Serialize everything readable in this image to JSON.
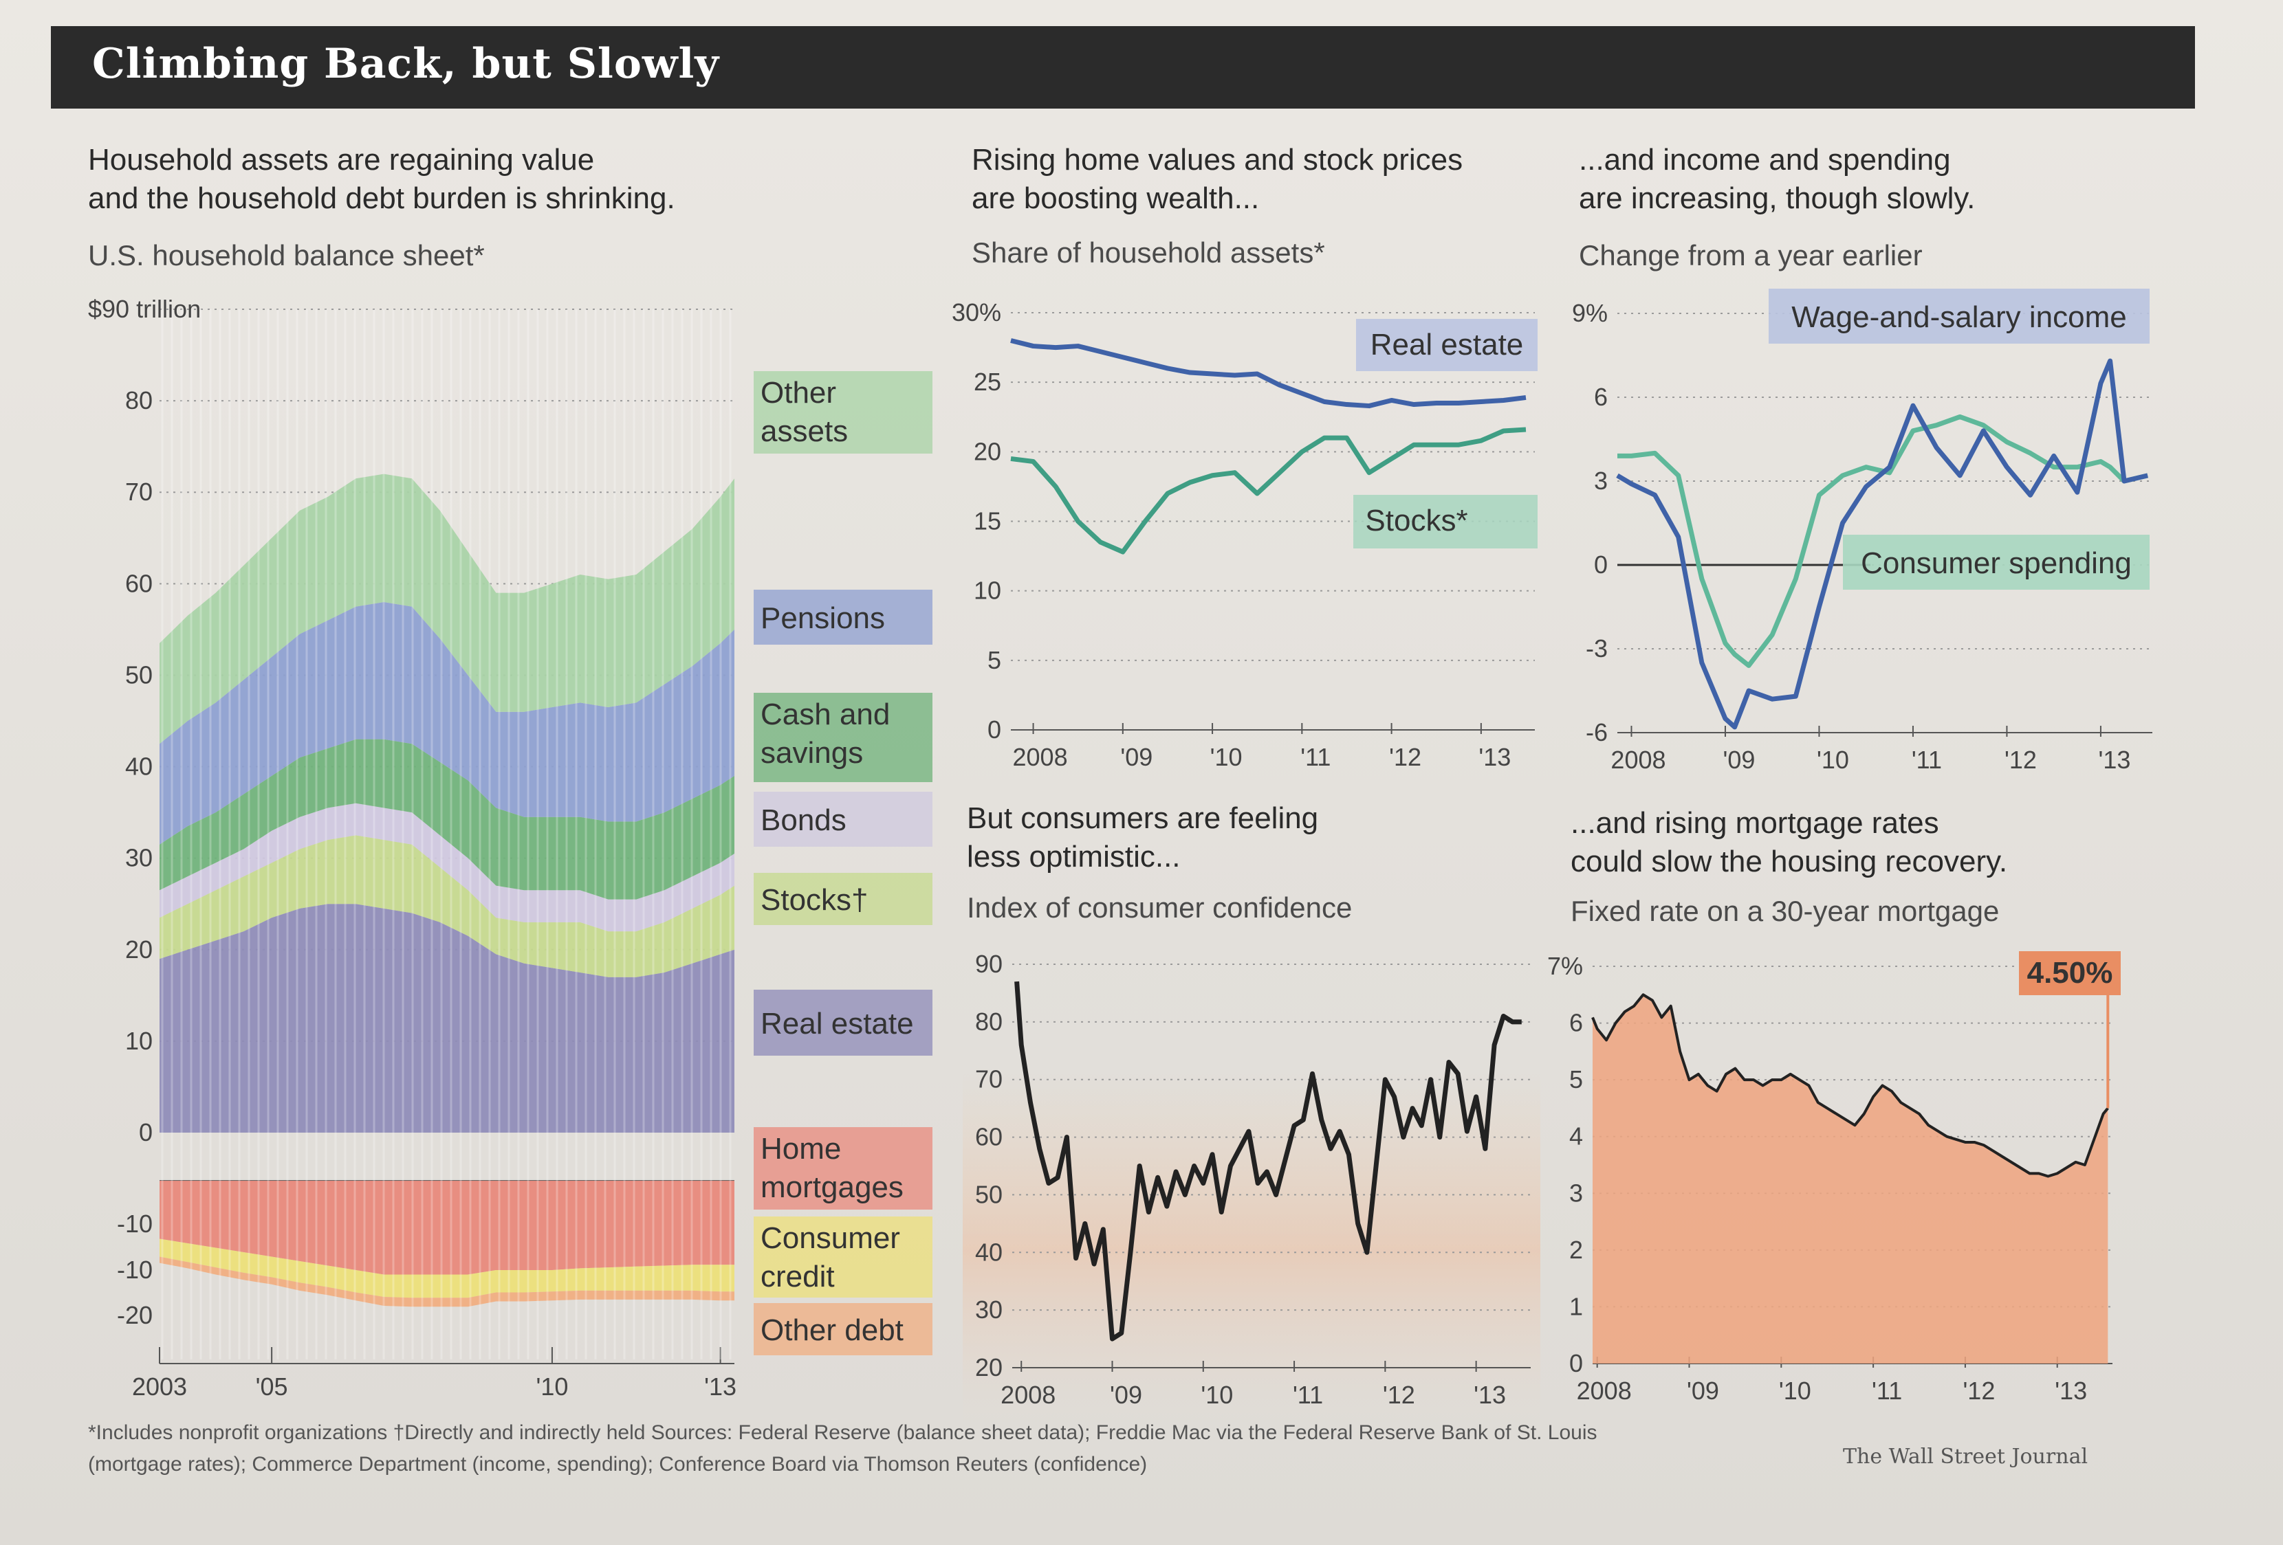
{
  "title": "Climbing Back, but Slowly",
  "panels": {
    "balance": {
      "headline_line1": "Household assets are regaining value",
      "headline_line2": "and the household debt burden is shrinking.",
      "subtitle": "U.S. household balance sheet*"
    },
    "share": {
      "headline_line1": "Rising home values and stock prices",
      "headline_line2": "are boosting wealth...",
      "subtitle": "Share of household assets*"
    },
    "income": {
      "headline_line1": "...and income and spending",
      "headline_line2": "are increasing, though slowly.",
      "subtitle": "Change from a year earlier"
    },
    "confidence": {
      "headline_line1": "But consumers are feeling",
      "headline_line2": "less optimistic...",
      "subtitle": "Index of consumer confidence"
    },
    "mortgage": {
      "headline_line1": "...and rising mortgage rates",
      "headline_line2": "could slow the housing recovery.",
      "subtitle": "Fixed rate on a 30-year mortgage"
    }
  },
  "footnote_line1": "*Includes nonprofit organizations    †Directly and indirectly held    Sources: Federal Reserve (balance sheet data); Freddie Mac via the Federal Reserve Bank of St. Louis",
  "footnote_line2": "(mortgage rates); Commerce Department (income, spending); Conference Board via Thomson Reuters (confidence)",
  "credit": "The Wall Street Journal",
  "chart_data": [
    {
      "type": "area",
      "title": "U.S. household balance sheet*",
      "y_unit_label": "$90 trillion",
      "ylim": [
        -20,
        90
      ],
      "y_ticks": [
        -20,
        -10,
        0,
        10,
        20,
        30,
        40,
        50,
        60,
        70,
        80,
        90
      ],
      "y_tick_labels": [
        "-20",
        "-10",
        "0",
        "10",
        "20",
        "30",
        "40",
        "50",
        "60",
        "70",
        "80",
        "$90 trillion"
      ],
      "x_tick_labels": [
        "2003",
        "'05",
        "'10",
        "'13"
      ],
      "x_tick_years": [
        2003,
        2005,
        2010,
        2013
      ],
      "x": [
        2003.0,
        2003.5,
        2004.0,
        2004.5,
        2005.0,
        2005.5,
        2006.0,
        2006.5,
        2007.0,
        2007.5,
        2008.0,
        2008.5,
        2009.0,
        2009.5,
        2010.0,
        2010.5,
        2011.0,
        2011.5,
        2012.0,
        2012.5,
        2013.0,
        2013.25
      ],
      "series": [
        {
          "name": "Real estate",
          "color": "#8e8bb8",
          "values": [
            19,
            20,
            21,
            22,
            23.5,
            24.5,
            25,
            25,
            24.5,
            24,
            23,
            21.5,
            19.5,
            18.5,
            18,
            17.5,
            17,
            17,
            17.5,
            18.5,
            19.5,
            20
          ]
        },
        {
          "name": "Stocks†",
          "color": "#c6d98e",
          "values": [
            4.5,
            5,
            5.5,
            6,
            6,
            6.5,
            7,
            7.5,
            7.5,
            7.5,
            6,
            5,
            4,
            4.5,
            5,
            5.5,
            5,
            5,
            5.5,
            6,
            6.5,
            7
          ]
        },
        {
          "name": "Bonds",
          "color": "#cfc8df",
          "values": [
            3,
            3,
            3,
            3,
            3.5,
            3.5,
            3.5,
            3.5,
            3.5,
            3.5,
            3.5,
            3.5,
            3.5,
            3.5,
            3.5,
            3.5,
            3.5,
            3.5,
            3.5,
            3.5,
            3.5,
            3.5
          ]
        },
        {
          "name": "Cash and savings",
          "color": "#6fb27a",
          "values": [
            5,
            5.5,
            5.5,
            6,
            6,
            6.5,
            6.5,
            7,
            7.5,
            7.5,
            8,
            8.5,
            8.5,
            8,
            8,
            8,
            8.5,
            8.5,
            8.5,
            8.5,
            8.5,
            8.5
          ]
        },
        {
          "name": "Pensions",
          "color": "#8d9fd0",
          "values": [
            11,
            11.5,
            12,
            12.5,
            13,
            13.5,
            14,
            14.5,
            15,
            15,
            13.5,
            11.5,
            10.5,
            11.5,
            12,
            12.5,
            12.5,
            13,
            14,
            14.5,
            15.5,
            16
          ]
        },
        {
          "name": "Other assets",
          "color": "#a8d3a6",
          "values": [
            11,
            11.5,
            12,
            12.5,
            13,
            13.5,
            13.5,
            14,
            14,
            14,
            14,
            13.5,
            13,
            13,
            13.5,
            14,
            14,
            14,
            14.5,
            15,
            16,
            16.5
          ]
        },
        {
          "name": "Home mortgages",
          "color": "#e8897c",
          "values": [
            -6.5,
            -7,
            -7.5,
            -8,
            -8.5,
            -9,
            -9.5,
            -10,
            -10.5,
            -10.5,
            -10.5,
            -10.5,
            -10,
            -10,
            -10,
            -9.8,
            -9.7,
            -9.6,
            -9.5,
            -9.4,
            -9.4,
            -9.4
          ]
        },
        {
          "name": "Consumer credit",
          "color": "#ecdf7a",
          "values": [
            -2,
            -2.1,
            -2.2,
            -2.3,
            -2.3,
            -2.4,
            -2.4,
            -2.5,
            -2.5,
            -2.6,
            -2.6,
            -2.6,
            -2.5,
            -2.5,
            -2.4,
            -2.5,
            -2.6,
            -2.7,
            -2.8,
            -2.9,
            -3,
            -3
          ]
        },
        {
          "name": "Other debt",
          "color": "#f0ae82",
          "values": [
            -0.7,
            -0.7,
            -0.8,
            -0.8,
            -0.8,
            -0.9,
            -0.9,
            -0.9,
            -1,
            -1,
            -1,
            -1,
            -1,
            -1,
            -1,
            -1,
            -1,
            -1,
            -1,
            -1,
            -1,
            -1
          ]
        }
      ],
      "legend_placement": "right"
    },
    {
      "type": "line",
      "title": "Share of household assets*",
      "ylim": [
        0,
        30
      ],
      "y_ticks": [
        0,
        5,
        10,
        15,
        20,
        25,
        30
      ],
      "y_tick_labels": [
        "0",
        "5",
        "10",
        "15",
        "20",
        "25",
        "30%"
      ],
      "x_tick_labels": [
        "2008",
        "'09",
        "'10",
        "'11",
        "'12",
        "'13"
      ],
      "x_tick_years": [
        2008,
        2009,
        2010,
        2011,
        2012,
        2013
      ],
      "x": [
        2007.75,
        2008.0,
        2008.25,
        2008.5,
        2008.75,
        2009.0,
        2009.25,
        2009.5,
        2009.75,
        2010.0,
        2010.25,
        2010.5,
        2010.75,
        2011.0,
        2011.25,
        2011.5,
        2011.75,
        2012.0,
        2012.25,
        2012.5,
        2012.75,
        2013.0,
        2013.25,
        2013.5
      ],
      "series": [
        {
          "name": "Real estate",
          "color": "#3f62a8",
          "values": [
            28,
            27.6,
            27.5,
            27.6,
            27.2,
            26.8,
            26.4,
            26,
            25.7,
            25.6,
            25.5,
            25.6,
            24.8,
            24.2,
            23.6,
            23.4,
            23.3,
            23.7,
            23.4,
            23.5,
            23.5,
            23.6,
            23.7,
            23.9
          ]
        },
        {
          "name": "Stocks*",
          "color": "#3f9e84",
          "values": [
            19.5,
            19.3,
            17.5,
            15,
            13.5,
            12.8,
            15,
            17,
            17.8,
            18.3,
            18.5,
            17,
            18.5,
            20,
            21,
            21,
            18.5,
            19.5,
            20.5,
            20.5,
            20.5,
            20.8,
            21.5,
            21.6
          ]
        }
      ]
    },
    {
      "type": "line",
      "title": "Change from a year earlier",
      "ylim": [
        -6,
        9
      ],
      "y_ticks": [
        -6,
        -3,
        0,
        3,
        6,
        9
      ],
      "y_tick_labels": [
        "-6",
        "-3",
        "0",
        "3",
        "6",
        "9%"
      ],
      "x_tick_labels": [
        "2008",
        "'09",
        "'10",
        "'11",
        "'12",
        "'13"
      ],
      "x_tick_years": [
        2008,
        2009,
        2010,
        2011,
        2012,
        2013
      ],
      "x": [
        2007.85,
        2008.0,
        2008.25,
        2008.5,
        2008.75,
        2009.0,
        2009.1,
        2009.25,
        2009.5,
        2009.75,
        2010.0,
        2010.25,
        2010.5,
        2010.75,
        2011.0,
        2011.25,
        2011.5,
        2011.75,
        2012.0,
        2012.25,
        2012.5,
        2012.75,
        2013.0,
        2013.1,
        2013.25,
        2013.5
      ],
      "series": [
        {
          "name": "Wage-and-salary income",
          "color": "#3f62a8",
          "values": [
            3.2,
            2.9,
            2.5,
            1,
            -3.5,
            -5.5,
            -5.8,
            -4.5,
            -4.8,
            -4.7,
            -1.5,
            1.5,
            2.8,
            3.5,
            5.7,
            4.2,
            3.2,
            4.8,
            3.5,
            2.5,
            3.9,
            2.6,
            6.5,
            7.3,
            3,
            3.2
          ]
        },
        {
          "name": "Consumer spending",
          "color": "#5fb89a",
          "values": [
            3.9,
            3.9,
            4,
            3.2,
            -0.5,
            -2.8,
            -3.2,
            -3.6,
            -2.5,
            -0.5,
            2.5,
            3.2,
            3.5,
            3.3,
            4.8,
            5,
            5.3,
            5,
            4.4,
            4,
            3.5,
            3.5,
            3.7,
            3.5,
            3,
            3.2
          ]
        }
      ]
    },
    {
      "type": "line",
      "title": "Index of consumer confidence",
      "ylim": [
        20,
        90
      ],
      "y_ticks": [
        20,
        30,
        40,
        50,
        60,
        70,
        80,
        90
      ],
      "y_tick_labels": [
        "20",
        "30",
        "40",
        "50",
        "60",
        "70",
        "80",
        "90"
      ],
      "x_tick_labels": [
        "2008",
        "'09",
        "'10",
        "'11",
        "'12",
        "'13"
      ],
      "x_tick_years": [
        2008,
        2009,
        2010,
        2011,
        2012,
        2013
      ],
      "x": [
        2007.95,
        2008.0,
        2008.1,
        2008.2,
        2008.3,
        2008.4,
        2008.5,
        2008.6,
        2008.7,
        2008.8,
        2008.9,
        2009.0,
        2009.1,
        2009.2,
        2009.3,
        2009.4,
        2009.5,
        2009.6,
        2009.7,
        2009.8,
        2009.9,
        2010.0,
        2010.1,
        2010.2,
        2010.3,
        2010.4,
        2010.5,
        2010.6,
        2010.7,
        2010.8,
        2010.9,
        2011.0,
        2011.1,
        2011.2,
        2011.3,
        2011.4,
        2011.5,
        2011.6,
        2011.7,
        2011.8,
        2011.9,
        2012.0,
        2012.1,
        2012.2,
        2012.3,
        2012.4,
        2012.5,
        2012.6,
        2012.7,
        2012.8,
        2012.9,
        2013.0,
        2013.1,
        2013.2,
        2013.3,
        2013.4,
        2013.5
      ],
      "series": [
        {
          "name": "Consumer confidence",
          "color": "#222222",
          "values": [
            87,
            76,
            66,
            58,
            52,
            53,
            60,
            39,
            45,
            38,
            44,
            25,
            26,
            40,
            55,
            47,
            53,
            48,
            54,
            50,
            55,
            52,
            57,
            47,
            55,
            58,
            61,
            52,
            54,
            50,
            56,
            62,
            63,
            71,
            63,
            58,
            61,
            57,
            45,
            40,
            55,
            70,
            67,
            60,
            65,
            62,
            70,
            60,
            73,
            71,
            61,
            67,
            58,
            76,
            81,
            80,
            80
          ]
        }
      ]
    },
    {
      "type": "area",
      "title": "Fixed rate on a 30-year mortgage",
      "ylim": [
        0,
        7
      ],
      "y_ticks": [
        0,
        1,
        2,
        3,
        4,
        5,
        6,
        7
      ],
      "y_tick_labels": [
        "0",
        "1",
        "2",
        "3",
        "4",
        "5",
        "6",
        "7%"
      ],
      "x_tick_labels": [
        "2008",
        "'09",
        "'10",
        "'11",
        "'12",
        "'13"
      ],
      "x_tick_years": [
        2008,
        2009,
        2010,
        2011,
        2012,
        2013
      ],
      "x": [
        2007.95,
        2008.0,
        2008.1,
        2008.2,
        2008.3,
        2008.4,
        2008.5,
        2008.6,
        2008.7,
        2008.8,
        2008.9,
        2009.0,
        2009.1,
        2009.2,
        2009.3,
        2009.4,
        2009.5,
        2009.6,
        2009.7,
        2009.8,
        2009.9,
        2010.0,
        2010.1,
        2010.2,
        2010.3,
        2010.4,
        2010.5,
        2010.6,
        2010.7,
        2010.8,
        2010.9,
        2011.0,
        2011.1,
        2011.2,
        2011.3,
        2011.4,
        2011.5,
        2011.6,
        2011.7,
        2011.8,
        2011.9,
        2012.0,
        2012.1,
        2012.2,
        2012.3,
        2012.4,
        2012.5,
        2012.6,
        2012.7,
        2012.8,
        2012.9,
        2013.0,
        2013.1,
        2013.2,
        2013.3,
        2013.4,
        2013.5,
        2013.55
      ],
      "series": [
        {
          "name": "30-year fixed mortgage rate",
          "color": "#222222",
          "values": [
            6.1,
            5.9,
            5.7,
            6.0,
            6.2,
            6.3,
            6.5,
            6.4,
            6.1,
            6.3,
            5.5,
            5.0,
            5.1,
            4.9,
            4.8,
            5.1,
            5.2,
            5.0,
            5.0,
            4.9,
            5.0,
            5.0,
            5.1,
            5.0,
            4.9,
            4.6,
            4.5,
            4.4,
            4.3,
            4.2,
            4.4,
            4.7,
            4.9,
            4.8,
            4.6,
            4.5,
            4.4,
            4.2,
            4.1,
            4.0,
            3.95,
            3.9,
            3.9,
            3.85,
            3.75,
            3.65,
            3.55,
            3.45,
            3.35,
            3.35,
            3.3,
            3.35,
            3.45,
            3.55,
            3.5,
            3.95,
            4.4,
            4.5
          ]
        }
      ],
      "annotation": "4.50%"
    }
  ]
}
